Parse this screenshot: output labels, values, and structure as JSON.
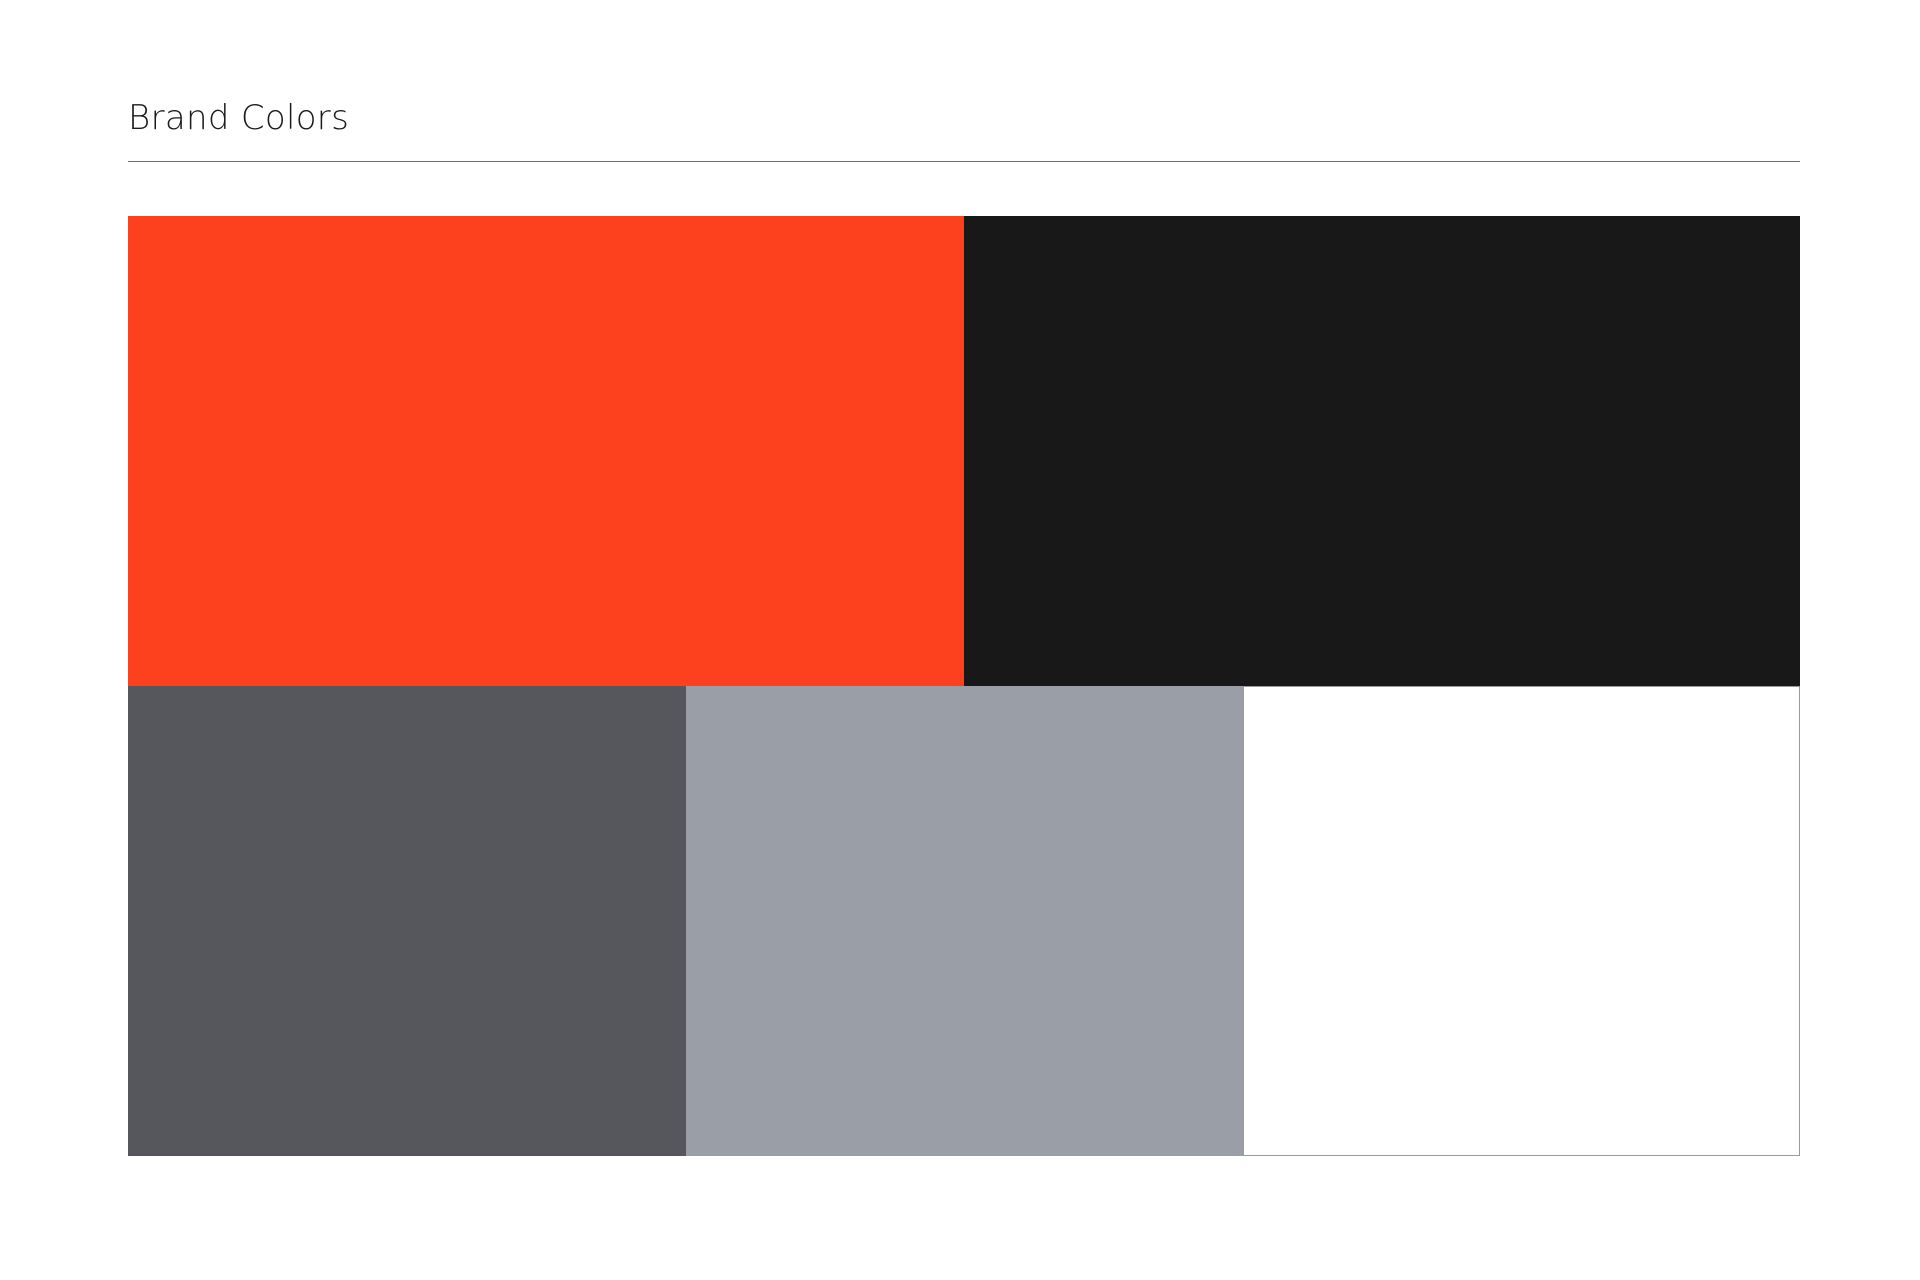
{
  "header": {
    "title": "Brand Colors"
  },
  "palette": {
    "primary": [
      {
        "name": "red-orange",
        "color": "#FD411E"
      },
      {
        "name": "near-black",
        "color": "#181818"
      }
    ],
    "secondary": [
      {
        "name": "dark-gray",
        "color": "#55575C"
      },
      {
        "name": "light-gray",
        "color": "#9A9EA6"
      },
      {
        "name": "white",
        "color": "#FFFFFF",
        "outlined": true
      }
    ]
  }
}
